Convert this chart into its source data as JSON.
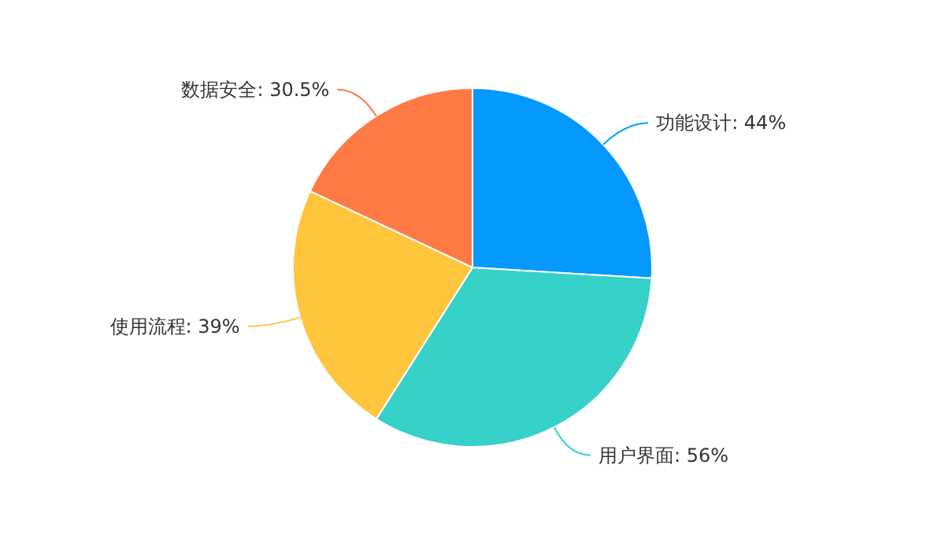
{
  "chart_data": {
    "type": "pie",
    "categories": [
      "功能设计",
      "用户界面",
      "使用流程",
      "数据安全"
    ],
    "values": [
      44,
      56,
      39,
      30.5
    ],
    "value_labels": [
      "44%",
      "56%",
      "39%",
      "30.5%"
    ],
    "colors": [
      "#0599fd",
      "#36d1c9",
      "#ffc53d",
      "#ff7a45"
    ]
  }
}
